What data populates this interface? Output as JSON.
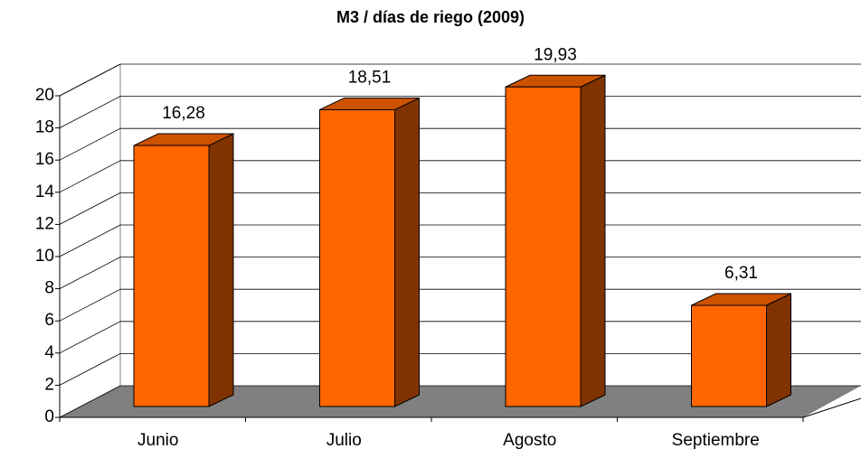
{
  "chart_data": {
    "type": "bar",
    "title": "M3 / días de riego (2009)",
    "categories": [
      "Junio",
      "Julio",
      "Agosto",
      "Septiembre"
    ],
    "values": [
      16.28,
      18.51,
      19.93,
      6.31
    ],
    "value_labels": [
      "16,28",
      "18,51",
      "19,93",
      "6,31"
    ],
    "color": "#ff6600",
    "ylim": [
      0,
      20
    ],
    "yticks": [
      0,
      2,
      4,
      6,
      8,
      10,
      12,
      14,
      16,
      18,
      20
    ],
    "grid": true
  }
}
